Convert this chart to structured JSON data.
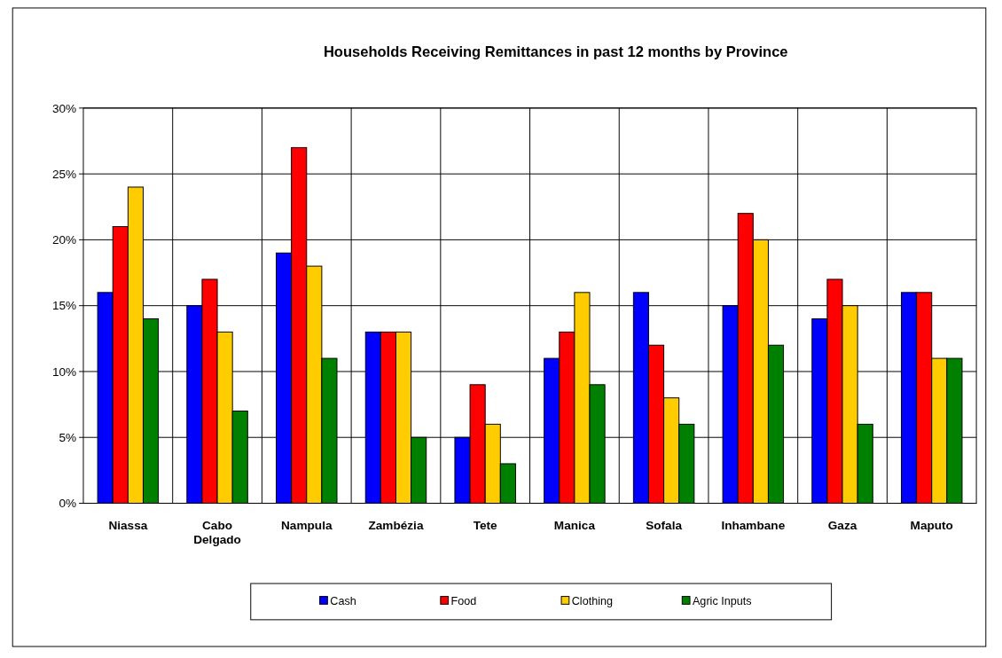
{
  "chart_data": {
    "type": "bar",
    "title": "Households Receiving Remittances in past 12 months by Province",
    "categories": [
      "Niassa",
      "Cabo Delgado",
      "Nampula",
      "Zambézia",
      "Tete",
      "Manica",
      "Sofala",
      "Inhambane",
      "Gaza",
      "Maputo"
    ],
    "series": [
      {
        "name": "Cash",
        "color": "#0000ff",
        "values": [
          16,
          15,
          19,
          13,
          5,
          11,
          16,
          15,
          14,
          16
        ]
      },
      {
        "name": "Food",
        "color": "#ff0000",
        "values": [
          21,
          17,
          27,
          13,
          9,
          13,
          12,
          22,
          17,
          16
        ]
      },
      {
        "name": "Clothing",
        "color": "#ffcc00",
        "values": [
          24,
          13,
          18,
          13,
          6,
          16,
          8,
          20,
          15,
          11
        ]
      },
      {
        "name": "Agric Inputs",
        "color": "#008000",
        "values": [
          14,
          7,
          11,
          5,
          3,
          9,
          6,
          12,
          6,
          11
        ]
      }
    ],
    "ylim": [
      0,
      30
    ],
    "yticks": [
      {
        "value": 0,
        "label": "0%"
      },
      {
        "value": 5,
        "label": "5%"
      },
      {
        "value": 10,
        "label": "10%"
      },
      {
        "value": 15,
        "label": "15%"
      },
      {
        "value": 20,
        "label": "20%"
      },
      {
        "value": 25,
        "label": "25%"
      },
      {
        "value": 30,
        "label": "30%"
      }
    ],
    "grid": true,
    "legend": "bottom"
  }
}
